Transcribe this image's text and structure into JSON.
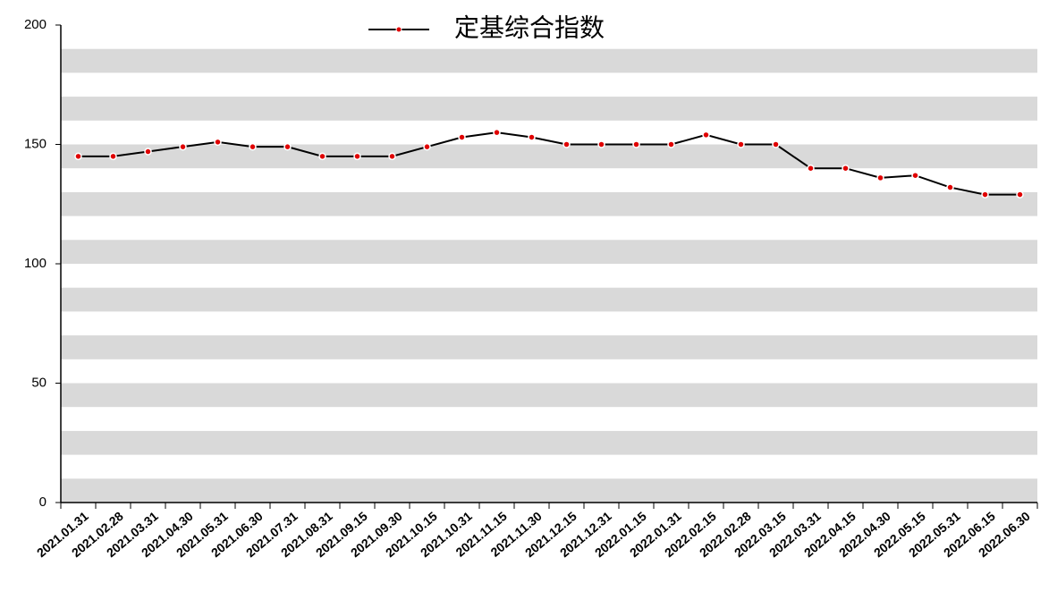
{
  "chart_data": {
    "type": "line",
    "categories": [
      "2021.01.31",
      "2021.02.28",
      "2021.03.31",
      "2021.04.30",
      "2021.05.31",
      "2021.06.30",
      "2021.07.31",
      "2021.08.31",
      "2021.09.15",
      "2021.09.30",
      "2021.10.15",
      "2021.10.31",
      "2021.11.15",
      "2021.11.30",
      "2021.12.15",
      "2021.12.31",
      "2022.01.15",
      "2022.01.31",
      "2022.02.15",
      "2022.02.28",
      "2022.03.15",
      "2022.03.31",
      "2022.04.15",
      "2022.04.30",
      "2022.05.15",
      "2022.05.31",
      "2022.06.15",
      "2022.06.30"
    ],
    "series": [
      {
        "name": "定基综合指数",
        "color": "#000000",
        "marker_color": "#e00000",
        "values": [
          145,
          145,
          147,
          149,
          151,
          149,
          149,
          145,
          145,
          145,
          149,
          153,
          155,
          153,
          150,
          150,
          150,
          150,
          154,
          150,
          150,
          140,
          140,
          136,
          137,
          132,
          129,
          129
        ]
      }
    ],
    "ylim": [
      0,
      200
    ],
    "yticks": [
      0,
      50,
      100,
      150,
      200
    ],
    "grid": true,
    "legend": "top"
  }
}
